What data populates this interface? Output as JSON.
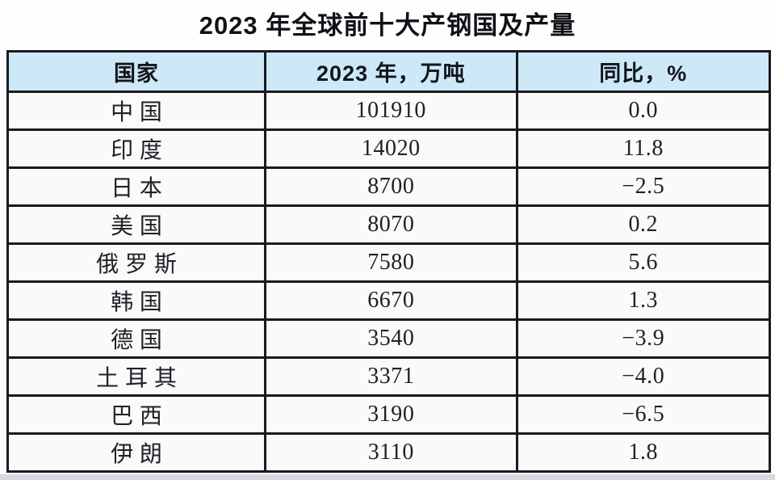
{
  "title": "2023 年全球前十大产钢国及产量",
  "table": {
    "headers": [
      "国家",
      "2023 年，万吨",
      "同比，%"
    ],
    "rows": [
      {
        "country": "中国",
        "production": "101910",
        "yoy": "0.0"
      },
      {
        "country": "印度",
        "production": "14020",
        "yoy": "11.8"
      },
      {
        "country": "日本",
        "production": "8700",
        "yoy": "−2.5"
      },
      {
        "country": "美国",
        "production": "8070",
        "yoy": "0.2"
      },
      {
        "country": "俄罗斯",
        "production": "7580",
        "yoy": "5.6"
      },
      {
        "country": "韩国",
        "production": "6670",
        "yoy": "1.3"
      },
      {
        "country": "德国",
        "production": "3540",
        "yoy": "−3.9"
      },
      {
        "country": "土耳其",
        "production": "3371",
        "yoy": "−4.0"
      },
      {
        "country": "巴西",
        "production": "3190",
        "yoy": "−6.5"
      },
      {
        "country": "伊朗",
        "production": "3110",
        "yoy": "1.8"
      }
    ]
  },
  "chart_data": {
    "type": "table",
    "title": "2023 年全球前十大产钢国及产量",
    "columns": [
      "国家",
      "2023 年，万吨",
      "同比，%"
    ],
    "rows": [
      [
        "中国",
        101910,
        0.0
      ],
      [
        "印度",
        14020,
        11.8
      ],
      [
        "日本",
        8700,
        -2.5
      ],
      [
        "美国",
        8070,
        0.2
      ],
      [
        "俄罗斯",
        7580,
        5.6
      ],
      [
        "韩国",
        6670,
        1.3
      ],
      [
        "德国",
        3540,
        -3.9
      ],
      [
        "土耳其",
        3371,
        -4.0
      ],
      [
        "巴西",
        3190,
        -6.5
      ],
      [
        "伊朗",
        3110,
        1.8
      ]
    ]
  },
  "colors": {
    "header_bg": "#cde9f8",
    "border": "#191921",
    "cell_bg": "#fbfaf8",
    "page_bg": "#fefefe",
    "bottom_strip": "#d6d9dd",
    "title_text": "#101016",
    "body_text": "#20202a"
  }
}
